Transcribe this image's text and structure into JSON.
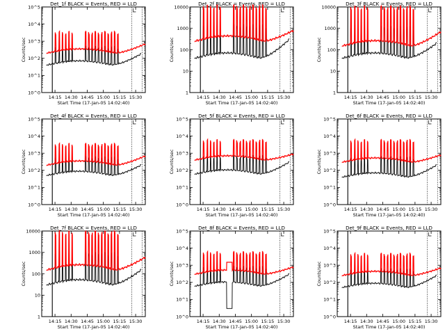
{
  "chart_data": [
    {
      "type": "line",
      "title": "Det_1f BLACK = Events, RED = LLD",
      "xlabel": "Start Time (17-Jan-05 14:02:40)",
      "ylabel": "Counts/sec",
      "yscale": "log",
      "ylim": [
        1,
        100000
      ],
      "y_tick_labels": [
        "10^0",
        "10^1",
        "10^2",
        "10^3",
        "10^4",
        "10^5"
      ],
      "xlim": [
        "14:02:40",
        "15:39:00"
      ],
      "x_tick_labels": [
        "14:15",
        "14:30",
        "14:45",
        "15:00",
        "15:15",
        "15:30"
      ],
      "markers": [
        "14:12:30",
        "15:26:20",
        "15:36:00"
      ],
      "series": [
        {
          "role": "events",
          "color": "#000000",
          "start": "14:07:00",
          "end": "15:35:00",
          "baseline_y": 40,
          "spike_y": 400,
          "end_y": 180,
          "curve": "hump"
        },
        {
          "role": "lld",
          "color": "#ff0000",
          "start": "14:07:00",
          "end": "15:39:00",
          "baseline_y": 200,
          "spike_y": 3000,
          "end_y": 700,
          "curve": "hump"
        }
      ],
      "spike_times": [
        "14:15:30",
        "14:19:00",
        "14:22:00",
        "14:25:00",
        "14:28:00",
        "14:31:00",
        "14:43:30",
        "14:46:30",
        "14:49:30",
        "14:52:30",
        "14:55:30",
        "14:58:30",
        "15:01:30",
        "15:04:30",
        "15:07:30",
        "15:10:30",
        "15:13:30"
      ],
      "dip": null
    },
    {
      "type": "line",
      "title": "Det_2f BLACK = Events, RED = LLD",
      "xlabel": "Start Time (17-Jan-05 14:02:40)",
      "ylabel": "Counts/sec",
      "yscale": "log",
      "ylim": [
        1,
        10000
      ],
      "y_tick_labels": [
        "1",
        "10",
        "100",
        "1000",
        "10000"
      ],
      "xlim": [
        "14:02:40",
        "15:39:00"
      ],
      "x_tick_labels": [
        "14:15",
        "14:30",
        "14:45",
        "15:00",
        "15:15",
        "15:30"
      ],
      "markers": [
        "14:12:30",
        "15:26:20",
        "15:36:00"
      ],
      "series": [
        {
          "role": "events",
          "color": "#000000",
          "start": "14:07:00",
          "end": "15:35:00",
          "baseline_y": 40,
          "spike_y": 1200,
          "end_y": 300,
          "curve": "hump"
        },
        {
          "role": "lld",
          "color": "#ff0000",
          "start": "14:07:00",
          "end": "15:39:00",
          "baseline_y": 250,
          "spike_y": 10000,
          "end_y": 800,
          "curve": "hump"
        }
      ],
      "spike_times": [
        "14:15:30",
        "14:19:00",
        "14:22:00",
        "14:25:00",
        "14:28:00",
        "14:31:00",
        "14:43:30",
        "14:46:30",
        "14:49:30",
        "14:52:30",
        "14:55:30",
        "14:58:30",
        "15:01:30",
        "15:04:30",
        "15:07:30",
        "15:10:30",
        "15:13:30"
      ],
      "dip": null
    },
    {
      "type": "line",
      "title": "Det_3f BLACK = Events, RED = LLD",
      "xlabel": "Start Time (17-Jan-05 14:02:40)",
      "ylabel": "Counts/sec",
      "yscale": "log",
      "ylim": [
        1,
        10000
      ],
      "y_tick_labels": [
        "1",
        "10",
        "100",
        "1000",
        "10000"
      ],
      "xlim": [
        "14:02:40",
        "15:39:00"
      ],
      "x_tick_labels": [
        "14:15",
        "14:30",
        "14:45",
        "15:00",
        "15:15",
        "15:30"
      ],
      "markers": [
        "14:12:30",
        "15:26:20",
        "15:36:00"
      ],
      "series": [
        {
          "role": "events",
          "color": "#000000",
          "start": "14:07:00",
          "end": "15:35:00",
          "baseline_y": 40,
          "spike_y": 1000,
          "end_y": 200,
          "curve": "hump"
        },
        {
          "role": "lld",
          "color": "#ff0000",
          "start": "14:07:00",
          "end": "15:39:00",
          "baseline_y": 150,
          "spike_y": 9000,
          "end_y": 700,
          "curve": "hump"
        }
      ],
      "spike_times": [
        "14:15:30",
        "14:19:00",
        "14:22:00",
        "14:25:00",
        "14:28:00",
        "14:31:00",
        "14:43:30",
        "14:46:30",
        "14:49:30",
        "14:52:30",
        "14:55:30",
        "14:58:30",
        "15:01:30",
        "15:04:30",
        "15:07:30",
        "15:10:30",
        "15:13:30"
      ],
      "dip": null
    },
    {
      "type": "line",
      "title": "Det_4f BLACK = Events, RED = LLD",
      "xlabel": "Start Time (17-Jan-05 14:02:40)",
      "ylabel": "Counts/sec",
      "yscale": "log",
      "ylim": [
        1,
        100000
      ],
      "y_tick_labels": [
        "10^0",
        "10^1",
        "10^2",
        "10^3",
        "10^4",
        "10^5"
      ],
      "xlim": [
        "14:02:40",
        "15:39:00"
      ],
      "x_tick_labels": [
        "14:15",
        "14:30",
        "14:45",
        "15:00",
        "15:15",
        "15:30"
      ],
      "markers": [
        "14:12:30",
        "15:26:20",
        "15:36:00"
      ],
      "series": [
        {
          "role": "events",
          "color": "#000000",
          "start": "14:07:00",
          "end": "15:35:00",
          "baseline_y": 50,
          "spike_y": 500,
          "end_y": 200,
          "curve": "hump"
        },
        {
          "role": "lld",
          "color": "#ff0000",
          "start": "14:07:00",
          "end": "15:39:00",
          "baseline_y": 200,
          "spike_y": 3000,
          "end_y": 700,
          "curve": "hump"
        }
      ],
      "spike_times": [
        "14:15:30",
        "14:19:00",
        "14:22:00",
        "14:25:00",
        "14:28:00",
        "14:31:00",
        "14:43:30",
        "14:46:30",
        "14:49:30",
        "14:52:30",
        "14:55:30",
        "14:58:30",
        "15:01:30",
        "15:04:30",
        "15:07:30",
        "15:10:30",
        "15:13:30"
      ],
      "dip": null
    },
    {
      "type": "line",
      "title": "Det_5f BLACK = Events, RED = LLD",
      "xlabel": "Start Time (17-Jan-05 14:02:40)",
      "ylabel": "Counts/sec",
      "yscale": "log",
      "ylim": [
        1,
        100000
      ],
      "y_tick_labels": [
        "10^0",
        "10^1",
        "10^2",
        "10^3",
        "10^4",
        "10^5"
      ],
      "xlim": [
        "14:02:40",
        "15:39:00"
      ],
      "x_tick_labels": [
        "14:15",
        "14:30",
        "14:45",
        "15:00",
        "15:15",
        "15:30"
      ],
      "markers": [
        "14:12:30",
        "15:26:20",
        "15:36:00"
      ],
      "series": [
        {
          "role": "events",
          "color": "#000000",
          "start": "14:07:00",
          "end": "15:35:00",
          "baseline_y": 60,
          "spike_y": 600,
          "end_y": 300,
          "curve": "hump"
        },
        {
          "role": "lld",
          "color": "#ff0000",
          "start": "14:07:00",
          "end": "15:39:00",
          "baseline_y": 400,
          "spike_y": 5000,
          "end_y": 900,
          "curve": "hump"
        }
      ],
      "spike_times": [
        "14:15:30",
        "14:19:00",
        "14:22:00",
        "14:25:00",
        "14:28:00",
        "14:31:00",
        "14:43:30",
        "14:46:30",
        "14:49:30",
        "14:52:30",
        "14:55:30",
        "14:58:30",
        "15:01:30",
        "15:04:30",
        "15:07:30",
        "15:10:30",
        "15:13:30"
      ],
      "dip": null
    },
    {
      "type": "line",
      "title": "Det_6f BLACK = Events, RED = LLD",
      "xlabel": "Start Time (17-Jan-05 14:02:40)",
      "ylabel": "Counts/sec",
      "yscale": "log",
      "ylim": [
        1,
        100000
      ],
      "y_tick_labels": [
        "10^0",
        "10^1",
        "10^2",
        "10^3",
        "10^4",
        "10^5"
      ],
      "xlim": [
        "14:02:40",
        "15:39:00"
      ],
      "x_tick_labels": [
        "14:15",
        "14:30",
        "14:45",
        "15:00",
        "15:15",
        "15:30"
      ],
      "markers": [
        "14:12:30",
        "15:26:20",
        "15:36:00"
      ],
      "series": [
        {
          "role": "events",
          "color": "#000000",
          "start": "14:07:00",
          "end": "15:35:00",
          "baseline_y": 40,
          "spike_y": 500,
          "end_y": 200,
          "curve": "hump"
        },
        {
          "role": "lld",
          "color": "#ff0000",
          "start": "14:07:00",
          "end": "15:39:00",
          "baseline_y": 300,
          "spike_y": 5000,
          "end_y": 800,
          "curve": "hump"
        }
      ],
      "spike_times": [
        "14:15:30",
        "14:19:00",
        "14:22:00",
        "14:25:00",
        "14:28:00",
        "14:31:00",
        "14:43:30",
        "14:46:30",
        "14:49:30",
        "14:52:30",
        "14:55:30",
        "14:58:30",
        "15:01:30",
        "15:04:30",
        "15:07:30",
        "15:10:30",
        "15:13:30"
      ],
      "dip": null
    },
    {
      "type": "line",
      "title": "Det_7f BLACK = Events, RED = LLD",
      "xlabel": "Start Time (17-Jan-05 14:02:40)",
      "ylabel": "Counts/sec",
      "yscale": "log",
      "ylim": [
        1,
        10000
      ],
      "y_tick_labels": [
        "1",
        "10",
        "100",
        "1000",
        "10000"
      ],
      "xlim": [
        "14:02:40",
        "15:39:00"
      ],
      "x_tick_labels": [
        "14:15",
        "14:30",
        "14:45",
        "15:00",
        "15:15",
        "15:30"
      ],
      "markers": [
        "14:12:30",
        "15:26:20",
        "15:36:00"
      ],
      "series": [
        {
          "role": "events",
          "color": "#000000",
          "start": "14:07:00",
          "end": "15:35:00",
          "baseline_y": 30,
          "spike_y": 800,
          "end_y": 150,
          "curve": "hump"
        },
        {
          "role": "lld",
          "color": "#ff0000",
          "start": "14:07:00",
          "end": "15:39:00",
          "baseline_y": 150,
          "spike_y": 8000,
          "end_y": 600,
          "curve": "hump"
        }
      ],
      "spike_times": [
        "14:15:30",
        "14:19:00",
        "14:22:00",
        "14:25:00",
        "14:28:00",
        "14:31:00",
        "14:43:30",
        "14:46:30",
        "14:49:30",
        "14:52:30",
        "14:55:30",
        "14:58:30",
        "15:01:30",
        "15:04:30",
        "15:07:30",
        "15:10:30",
        "15:13:30"
      ],
      "dip": null
    },
    {
      "type": "line",
      "title": "Det_8f BLACK = Events, RED = LLD",
      "xlabel": "Start Time (17-Jan-05 14:02:40)",
      "ylabel": "Counts/sec",
      "yscale": "log",
      "ylim": [
        1,
        100000
      ],
      "y_tick_labels": [
        "10^0",
        "10^1",
        "10^2",
        "10^3",
        "10^4",
        "10^5"
      ],
      "xlim": [
        "14:02:40",
        "15:39:00"
      ],
      "x_tick_labels": [
        "14:15",
        "14:30",
        "14:45",
        "15:00",
        "15:15",
        "15:30"
      ],
      "markers": [
        "14:12:30",
        "15:26:20",
        "15:36:00"
      ],
      "series": [
        {
          "role": "events",
          "color": "#000000",
          "start": "14:07:00",
          "end": "15:35:00",
          "baseline_y": 60,
          "spike_y": 700,
          "end_y": 300,
          "curve": "hump"
        },
        {
          "role": "lld",
          "color": "#ff0000",
          "start": "14:07:00",
          "end": "15:39:00",
          "baseline_y": 300,
          "spike_y": 5000,
          "end_y": 800,
          "curve": "hump"
        }
      ],
      "spike_times": [
        "14:15:30",
        "14:19:00",
        "14:22:00",
        "14:25:00",
        "14:28:00",
        "14:31:00",
        "14:43:30",
        "14:46:30",
        "14:49:30",
        "14:52:30",
        "14:55:30",
        "14:58:30",
        "15:01:30",
        "15:04:30",
        "15:07:30",
        "15:10:30",
        "15:13:30"
      ],
      "dip": {
        "start": "14:37:00",
        "end": "14:42:00",
        "y": 3,
        "lld_level_y": 1500
      }
    },
    {
      "type": "line",
      "title": "Det_9f BLACK = Events, RED = LLD",
      "xlabel": "Start Time (17-Jan-05 14:02:40)",
      "ylabel": "Counts/sec",
      "yscale": "log",
      "ylim": [
        1,
        100000
      ],
      "y_tick_labels": [
        "10^0",
        "10^1",
        "10^2",
        "10^3",
        "10^4",
        "10^5"
      ],
      "xlim": [
        "14:02:40",
        "15:39:00"
      ],
      "x_tick_labels": [
        "14:15",
        "14:30",
        "14:45",
        "15:00",
        "15:15",
        "15:30"
      ],
      "markers": [
        "14:12:30",
        "15:26:20",
        "15:36:00"
      ],
      "series": [
        {
          "role": "events",
          "color": "#000000",
          "start": "14:07:00",
          "end": "15:35:00",
          "baseline_y": 50,
          "spike_y": 500,
          "end_y": 250,
          "curve": "hump"
        },
        {
          "role": "lld",
          "color": "#ff0000",
          "start": "14:07:00",
          "end": "15:39:00",
          "baseline_y": 250,
          "spike_y": 4000,
          "end_y": 700,
          "curve": "hump"
        }
      ],
      "spike_times": [
        "14:15:30",
        "14:19:00",
        "14:22:00",
        "14:25:00",
        "14:28:00",
        "14:31:00",
        "14:43:30",
        "14:46:30",
        "14:49:30",
        "14:52:30",
        "14:55:30",
        "14:58:30",
        "15:01:30",
        "15:04:30",
        "15:07:30",
        "15:10:30",
        "15:13:30"
      ],
      "dip": null
    }
  ]
}
